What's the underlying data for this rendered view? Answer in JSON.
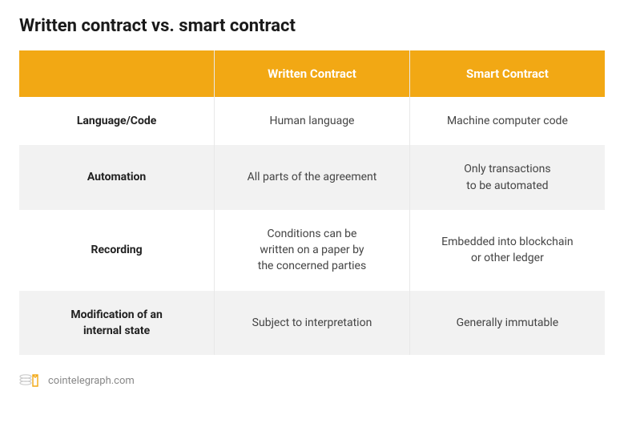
{
  "title": "Written contract vs. smart contract",
  "table": {
    "type": "table",
    "header_bg": "#f2a814",
    "header_fg": "#ffffff",
    "row_alt_bg": "#f2f2f2",
    "border_color": "#e8e8e8",
    "text_color": "#444444",
    "label_color": "#222222",
    "title_fontsize": 22,
    "header_fontsize": 15,
    "cell_fontsize": 14,
    "columns": [
      "",
      "Written Contract",
      "Smart Contract"
    ],
    "rows": [
      {
        "label": "Language/Code",
        "written": "Human language",
        "smart": "Machine computer code"
      },
      {
        "label": "Automation",
        "written": "All parts of the agreement",
        "smart": "Only transactions\nto be automated"
      },
      {
        "label": "Recording",
        "written": "Conditions can be\nwritten on a paper by\nthe concerned parties",
        "smart": "Embedded into blockchain\nor other ledger"
      },
      {
        "label": "Modification of an\ninternal state",
        "written": "Subject to interpretation",
        "smart": "Generally immutable"
      }
    ]
  },
  "footer": {
    "source": "cointelegraph.com",
    "icon_color_primary": "#f2a814",
    "icon_color_secondary": "#cccccc"
  }
}
